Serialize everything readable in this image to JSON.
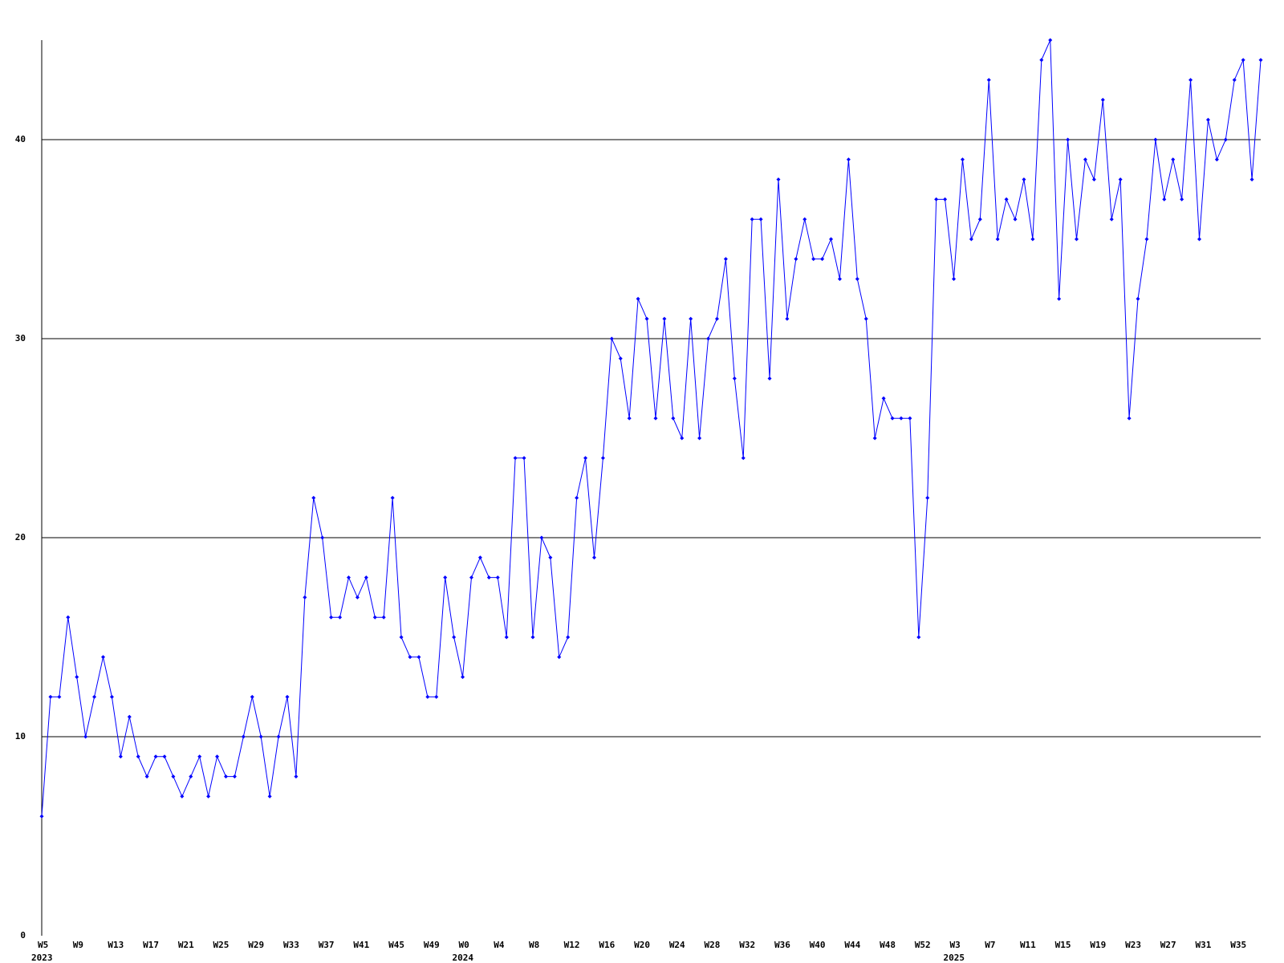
{
  "chart_data": {
    "type": "line",
    "categories": [
      "W5",
      null,
      null,
      null,
      "W9",
      null,
      null,
      null,
      "W13",
      null,
      null,
      null,
      "W17",
      null,
      null,
      null,
      "W21",
      null,
      null,
      null,
      "W25",
      null,
      null,
      null,
      "W29",
      null,
      null,
      null,
      "W33",
      null,
      null,
      null,
      "W37",
      null,
      null,
      null,
      "W41",
      null,
      null,
      null,
      "W45",
      null,
      null,
      null,
      "W49",
      null,
      null,
      null,
      "W0",
      null,
      null,
      null,
      "W4",
      null,
      null,
      null,
      "W8",
      null,
      null,
      null,
      "W12",
      null,
      null,
      null,
      "W16",
      null,
      null,
      null,
      "W20",
      null,
      null,
      null,
      "W24",
      null,
      null,
      null,
      "W28",
      null,
      null,
      null,
      "W32",
      null,
      null,
      null,
      "W36",
      null,
      null,
      null,
      "W40",
      null,
      null,
      null,
      "W44",
      null,
      null,
      null,
      "W48",
      null,
      null,
      null,
      "W52",
      null,
      null,
      null,
      "W3",
      null,
      null,
      null,
      "W7",
      null,
      null,
      null,
      "W11",
      null,
      null,
      null,
      "W15",
      null,
      null,
      null,
      "W19",
      null,
      null,
      null,
      "W23",
      null,
      null,
      null,
      "W27",
      null,
      null,
      null,
      "W31",
      null,
      null,
      null,
      "W35",
      null,
      null,
      null
    ],
    "category_years": [
      "2023",
      null,
      null,
      null,
      null,
      null,
      null,
      null,
      null,
      null,
      null,
      null,
      null,
      null,
      null,
      null,
      null,
      null,
      null,
      null,
      null,
      null,
      null,
      null,
      null,
      null,
      null,
      null,
      null,
      null,
      null,
      null,
      null,
      null,
      null,
      null,
      null,
      null,
      null,
      null,
      null,
      null,
      null,
      null,
      null,
      null,
      null,
      null,
      "2024",
      null,
      null,
      null,
      null,
      null,
      null,
      null,
      null,
      null,
      null,
      null,
      null,
      null,
      null,
      null,
      null,
      null,
      null,
      null,
      null,
      null,
      null,
      null,
      null,
      null,
      null,
      null,
      null,
      null,
      null,
      null,
      null,
      null,
      null,
      null,
      null,
      null,
      null,
      null,
      null,
      null,
      null,
      null,
      null,
      null,
      null,
      null,
      null,
      null,
      null,
      null,
      null,
      null,
      null,
      null,
      "2025",
      null,
      null,
      null,
      null,
      null,
      null,
      null,
      null,
      null,
      null,
      null,
      null,
      null,
      null,
      null,
      null,
      null,
      null,
      null,
      null,
      null,
      null,
      null,
      null,
      null,
      null,
      null,
      null,
      null,
      null,
      null,
      null,
      null,
      null
    ],
    "series": [
      {
        "color": "#0000ff",
        "values": [
          6,
          12,
          12,
          16,
          13,
          10,
          12,
          14,
          12,
          9,
          11,
          9,
          8,
          9,
          9,
          8,
          7,
          8,
          9,
          7,
          9,
          8,
          8,
          10,
          12,
          10,
          7,
          10,
          12,
          8,
          17,
          22,
          20,
          16,
          16,
          18,
          17,
          18,
          16,
          16,
          22,
          15,
          14,
          14,
          12,
          12,
          18,
          15,
          13,
          18,
          19,
          18,
          18,
          15,
          24,
          24,
          15,
          20,
          19,
          14,
          15,
          22,
          24,
          19,
          24,
          30,
          29,
          26,
          32,
          31,
          26,
          31,
          26,
          25,
          31,
          25,
          30,
          31,
          34,
          28,
          24,
          36,
          36,
          28,
          38,
          31,
          34,
          36,
          34,
          34,
          35,
          33,
          39,
          33,
          31,
          25,
          27,
          26,
          26,
          26,
          15,
          22,
          37,
          37,
          33,
          39,
          35,
          36,
          43,
          35,
          37,
          36,
          38,
          35,
          44,
          45,
          32,
          40,
          35,
          39,
          38,
          42,
          36,
          38,
          26,
          32,
          35,
          40,
          37,
          39,
          37,
          43,
          35,
          41,
          39,
          40,
          43,
          44,
          38,
          44
        ]
      }
    ],
    "ylim": [
      0,
      45
    ],
    "yticks": [
      0,
      10,
      20,
      30,
      40
    ],
    "grid": true
  }
}
